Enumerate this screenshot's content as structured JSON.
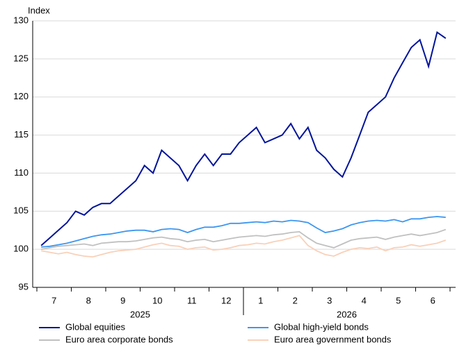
{
  "chart_data": {
    "type": "line",
    "ylabel": "Index",
    "ylim": [
      95,
      130
    ],
    "yticks": [
      95,
      100,
      105,
      110,
      115,
      120,
      125,
      130
    ],
    "grid": true,
    "categories": [
      null,
      null,
      "7",
      null,
      null,
      null,
      "8",
      null,
      null,
      null,
      "9",
      null,
      null,
      null,
      "10",
      null,
      null,
      null,
      "11",
      null,
      null,
      null,
      "12",
      null,
      null,
      null,
      "1",
      null,
      null,
      null,
      "2",
      null,
      null,
      null,
      "3",
      null,
      null,
      null,
      "4",
      null,
      null,
      null,
      "5",
      null,
      null,
      null,
      "6",
      null
    ],
    "year_labels": [
      "2025",
      "2026"
    ],
    "series": [
      {
        "name": "Global equities",
        "color": "#00149a",
        "values": [
          100.5,
          101.5,
          102.5,
          103.5,
          105,
          104.5,
          105.5,
          106,
          106,
          107,
          108,
          109,
          111,
          110,
          113,
          112,
          111,
          109,
          111,
          112.5,
          111,
          112.5,
          112.5,
          114,
          115,
          116,
          114,
          114.5,
          115,
          116.5,
          114.5,
          116,
          113,
          112,
          110.5,
          109.5,
          112,
          115,
          118,
          119,
          120,
          122.5,
          124.5,
          126.5,
          127.5,
          124,
          128.5,
          127.7
        ]
      },
      {
        "name": "Global high-yield bonds",
        "color": "#3c96f0",
        "values": [
          100.3,
          100.4,
          100.6,
          100.8,
          101.1,
          101.4,
          101.7,
          101.9,
          102,
          102.2,
          102.4,
          102.5,
          102.5,
          102.3,
          102.6,
          102.7,
          102.6,
          102.2,
          102.6,
          102.9,
          102.9,
          103.1,
          103.4,
          103.4,
          103.5,
          103.6,
          103.5,
          103.7,
          103.6,
          103.8,
          103.7,
          103.5,
          102.8,
          102.2,
          102.4,
          102.7,
          103.2,
          103.5,
          103.7,
          103.8,
          103.7,
          103.9,
          103.6,
          104,
          104,
          104.2,
          104.3,
          104.2
        ]
      },
      {
        "name": "Euro area corporate bonds",
        "color": "#c0c0c0",
        "values": [
          100,
          100.2,
          100.4,
          100.5,
          100.6,
          100.7,
          100.5,
          100.8,
          100.9,
          101,
          101,
          101.1,
          101.3,
          101.5,
          101.6,
          101.4,
          101.3,
          101,
          101.2,
          101.3,
          101,
          101.2,
          101.4,
          101.6,
          101.7,
          101.8,
          101.7,
          101.9,
          102,
          102.2,
          102.3,
          101.5,
          100.8,
          100.5,
          100.2,
          100.7,
          101.2,
          101.4,
          101.5,
          101.6,
          101.3,
          101.6,
          101.8,
          102,
          101.8,
          102,
          102.2,
          102.6
        ]
      },
      {
        "name": "Euro area government bonds",
        "color": "#f9d0b8",
        "values": [
          99.8,
          99.6,
          99.4,
          99.6,
          99.3,
          99.1,
          99,
          99.3,
          99.6,
          99.8,
          99.9,
          100,
          100.3,
          100.6,
          100.8,
          100.5,
          100.4,
          100,
          100.2,
          100.3,
          99.9,
          100,
          100.2,
          100.5,
          100.6,
          100.8,
          100.7,
          101,
          101.2,
          101.5,
          101.8,
          100.5,
          99.8,
          99.3,
          99.1,
          99.6,
          100,
          100.2,
          100.1,
          100.3,
          99.8,
          100.2,
          100.3,
          100.6,
          100.4,
          100.6,
          100.8,
          101.2
        ]
      }
    ]
  }
}
